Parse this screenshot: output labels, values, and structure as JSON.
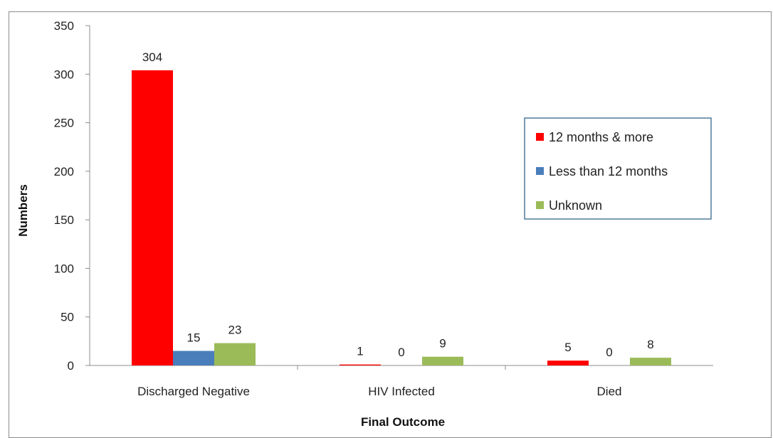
{
  "chart_data": {
    "type": "bar",
    "categories": [
      "Discharged Negative",
      "HIV Infected",
      "Died"
    ],
    "series": [
      {
        "name": "12 months & more",
        "color": "#ff0000",
        "values": [
          304,
          1,
          5
        ]
      },
      {
        "name": "Less than 12 months",
        "color": "#4a7ebb",
        "values": [
          15,
          0,
          0
        ]
      },
      {
        "name": "Unknown",
        "color": "#9bbb59",
        "values": [
          23,
          9,
          8
        ]
      }
    ],
    "xlabel": "Final Outcome",
    "ylabel": "Numbers",
    "ylim": [
      0,
      350
    ],
    "yticks": [
      0,
      50,
      100,
      150,
      200,
      250,
      300,
      350
    ],
    "grid": false,
    "legend_position": "right"
  }
}
